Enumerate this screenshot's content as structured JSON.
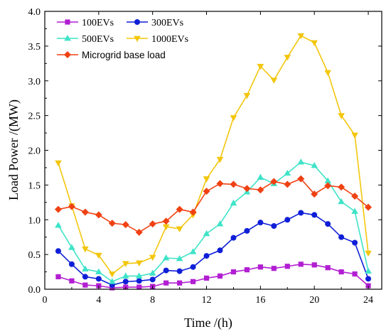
{
  "chart_data": {
    "type": "line",
    "xlabel": "Time /(h)",
    "ylabel": "Load Power /(MW)",
    "xlim": [
      0,
      25
    ],
    "ylim": [
      0,
      4.0
    ],
    "x_ticks": [
      0,
      4,
      8,
      12,
      16,
      20,
      24
    ],
    "y_ticks": [
      0.0,
      0.5,
      1.0,
      1.5,
      2.0,
      2.5,
      3.0,
      3.5,
      4.0
    ],
    "x": [
      1,
      2,
      3,
      4,
      5,
      6,
      7,
      8,
      9,
      10,
      11,
      12,
      13,
      14,
      15,
      16,
      17,
      18,
      19,
      20,
      21,
      22,
      23,
      24
    ],
    "legend_position": "top-left",
    "series": [
      {
        "name": "100EVs",
        "color": "#b21ed2",
        "marker": "square",
        "values": [
          0.18,
          0.12,
          0.06,
          0.05,
          0.02,
          0.03,
          0.03,
          0.04,
          0.09,
          0.09,
          0.11,
          0.16,
          0.19,
          0.25,
          0.28,
          0.32,
          0.3,
          0.33,
          0.36,
          0.35,
          0.31,
          0.25,
          0.22,
          0.05
        ]
      },
      {
        "name": "300EVs",
        "color": "#0f1fd8",
        "marker": "circle",
        "values": [
          0.55,
          0.36,
          0.18,
          0.15,
          0.06,
          0.11,
          0.12,
          0.14,
          0.27,
          0.26,
          0.32,
          0.48,
          0.56,
          0.74,
          0.84,
          0.96,
          0.91,
          1.0,
          1.1,
          1.07,
          0.94,
          0.75,
          0.67,
          0.15
        ]
      },
      {
        "name": "500EVs",
        "color": "#3fe3c8",
        "marker": "triangle-up",
        "values": [
          0.92,
          0.6,
          0.29,
          0.25,
          0.11,
          0.19,
          0.19,
          0.23,
          0.45,
          0.44,
          0.54,
          0.8,
          0.94,
          1.24,
          1.4,
          1.61,
          1.52,
          1.67,
          1.83,
          1.78,
          1.56,
          1.26,
          1.12,
          0.26
        ]
      },
      {
        "name": "1000EVs",
        "color": "#f3c60c",
        "marker": "triangle-down",
        "values": [
          1.82,
          1.2,
          0.58,
          0.49,
          0.22,
          0.37,
          0.38,
          0.46,
          0.9,
          0.87,
          1.07,
          1.59,
          1.87,
          2.47,
          2.79,
          3.21,
          3.01,
          3.34,
          3.65,
          3.55,
          3.12,
          2.5,
          2.22,
          0.52
        ]
      },
      {
        "name": "Microgrid base load",
        "color": "#f04112",
        "marker": "diamond",
        "values": [
          1.15,
          1.19,
          1.11,
          1.07,
          0.95,
          0.93,
          0.82,
          0.94,
          0.98,
          1.15,
          1.11,
          1.41,
          1.52,
          1.51,
          1.45,
          1.43,
          1.55,
          1.51,
          1.59,
          1.37,
          1.49,
          1.47,
          1.34,
          1.18
        ]
      }
    ]
  }
}
